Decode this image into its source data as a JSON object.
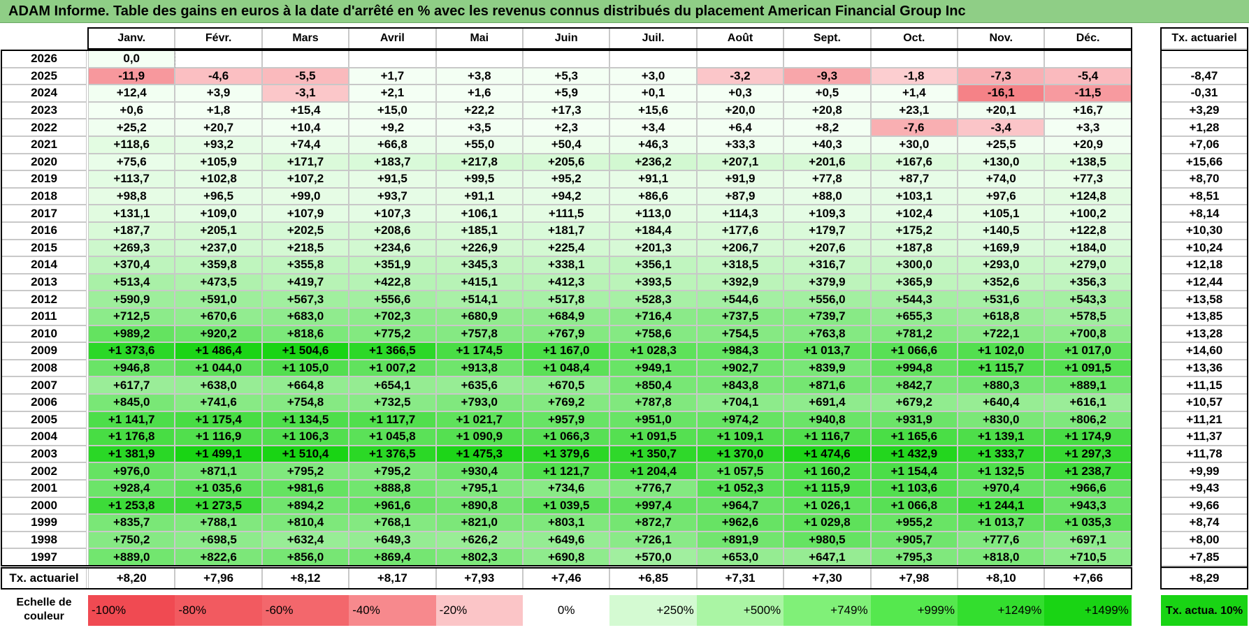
{
  "title": "ADAM Informe. Table des gains en euros à la date d'arrêté en % avec les revenus connus distribués du placement American Financial Group Inc",
  "chart_data": {
    "type": "table",
    "months": [
      "Janv.",
      "Févr.",
      "Mars",
      "Avril",
      "Mai",
      "Juin",
      "Juil.",
      "Août",
      "Sept.",
      "Oct.",
      "Nov.",
      "Déc."
    ],
    "rate_header": "Tx. actuariel",
    "rows": [
      {
        "year": "2026",
        "values": [
          "0,0",
          "",
          "",
          "",
          "",
          "",
          "",
          "",
          "",
          "",
          "",
          ""
        ],
        "rate": ""
      },
      {
        "year": "2025",
        "values": [
          "-11,9",
          "-4,6",
          "-5,5",
          "+1,7",
          "+3,8",
          "+5,3",
          "+3,0",
          "-3,2",
          "-9,3",
          "-1,8",
          "-7,3",
          "-5,4"
        ],
        "rate": "-8,47"
      },
      {
        "year": "2024",
        "values": [
          "+12,4",
          "+3,9",
          "-3,1",
          "+2,1",
          "+1,6",
          "+5,9",
          "+0,1",
          "+0,3",
          "+0,5",
          "+1,4",
          "-16,1",
          "-11,5"
        ],
        "rate": "-0,31"
      },
      {
        "year": "2023",
        "values": [
          "+0,6",
          "+1,8",
          "+15,4",
          "+15,0",
          "+22,2",
          "+17,3",
          "+15,6",
          "+20,0",
          "+20,8",
          "+23,1",
          "+20,1",
          "+16,7"
        ],
        "rate": "+3,29"
      },
      {
        "year": "2022",
        "values": [
          "+25,2",
          "+20,7",
          "+10,4",
          "+9,2",
          "+3,5",
          "+2,3",
          "+3,4",
          "+6,4",
          "+8,2",
          "-7,6",
          "-3,4",
          "+3,3"
        ],
        "rate": "+1,28"
      },
      {
        "year": "2021",
        "values": [
          "+118,6",
          "+93,2",
          "+74,4",
          "+66,8",
          "+55,0",
          "+50,4",
          "+46,3",
          "+33,3",
          "+40,3",
          "+30,0",
          "+25,5",
          "+20,9"
        ],
        "rate": "+7,06"
      },
      {
        "year": "2020",
        "values": [
          "+75,6",
          "+105,9",
          "+171,7",
          "+183,7",
          "+217,8",
          "+205,6",
          "+236,2",
          "+207,1",
          "+201,6",
          "+167,6",
          "+130,0",
          "+138,5"
        ],
        "rate": "+15,66"
      },
      {
        "year": "2019",
        "values": [
          "+113,7",
          "+102,8",
          "+107,2",
          "+91,5",
          "+99,5",
          "+95,2",
          "+91,1",
          "+91,9",
          "+77,8",
          "+87,7",
          "+74,0",
          "+77,3"
        ],
        "rate": "+8,70"
      },
      {
        "year": "2018",
        "values": [
          "+98,8",
          "+96,5",
          "+99,0",
          "+93,7",
          "+91,1",
          "+94,2",
          "+86,6",
          "+87,9",
          "+88,0",
          "+103,1",
          "+97,6",
          "+124,8"
        ],
        "rate": "+8,51"
      },
      {
        "year": "2017",
        "values": [
          "+131,1",
          "+109,0",
          "+107,9",
          "+107,3",
          "+106,1",
          "+111,5",
          "+113,0",
          "+114,3",
          "+109,3",
          "+102,4",
          "+105,1",
          "+100,2"
        ],
        "rate": "+8,14"
      },
      {
        "year": "2016",
        "values": [
          "+187,7",
          "+205,1",
          "+202,5",
          "+208,6",
          "+185,1",
          "+181,7",
          "+184,4",
          "+177,6",
          "+179,7",
          "+175,2",
          "+140,5",
          "+122,8"
        ],
        "rate": "+10,30"
      },
      {
        "year": "2015",
        "values": [
          "+269,3",
          "+237,0",
          "+218,5",
          "+234,6",
          "+226,9",
          "+225,4",
          "+201,3",
          "+206,7",
          "+207,6",
          "+187,8",
          "+169,9",
          "+184,0"
        ],
        "rate": "+10,24"
      },
      {
        "year": "2014",
        "values": [
          "+370,4",
          "+359,8",
          "+355,8",
          "+351,9",
          "+345,3",
          "+338,1",
          "+356,1",
          "+318,5",
          "+316,7",
          "+300,0",
          "+293,0",
          "+279,0"
        ],
        "rate": "+12,18"
      },
      {
        "year": "2013",
        "values": [
          "+513,4",
          "+473,5",
          "+419,7",
          "+422,8",
          "+415,1",
          "+412,3",
          "+393,5",
          "+392,9",
          "+379,9",
          "+365,9",
          "+352,6",
          "+356,3"
        ],
        "rate": "+12,44"
      },
      {
        "year": "2012",
        "values": [
          "+590,9",
          "+591,0",
          "+567,3",
          "+556,6",
          "+514,1",
          "+517,8",
          "+528,3",
          "+544,6",
          "+556,0",
          "+544,3",
          "+531,6",
          "+543,3"
        ],
        "rate": "+13,58"
      },
      {
        "year": "2011",
        "values": [
          "+712,5",
          "+670,6",
          "+683,0",
          "+702,3",
          "+680,9",
          "+684,9",
          "+716,4",
          "+737,5",
          "+739,7",
          "+655,3",
          "+618,8",
          "+578,5"
        ],
        "rate": "+13,85"
      },
      {
        "year": "2010",
        "values": [
          "+989,2",
          "+920,2",
          "+818,6",
          "+775,2",
          "+757,8",
          "+767,9",
          "+758,6",
          "+754,5",
          "+763,8",
          "+781,2",
          "+722,1",
          "+700,8"
        ],
        "rate": "+13,28"
      },
      {
        "year": "2009",
        "values": [
          "+1 373,6",
          "+1 486,4",
          "+1 504,6",
          "+1 366,5",
          "+1 174,5",
          "+1 167,0",
          "+1 028,3",
          "+984,3",
          "+1 013,7",
          "+1 066,6",
          "+1 102,0",
          "+1 017,0"
        ],
        "rate": "+14,60"
      },
      {
        "year": "2008",
        "values": [
          "+946,8",
          "+1 044,0",
          "+1 105,0",
          "+1 007,2",
          "+913,8",
          "+1 048,4",
          "+949,1",
          "+902,7",
          "+839,9",
          "+994,8",
          "+1 115,7",
          "+1 091,5"
        ],
        "rate": "+13,36"
      },
      {
        "year": "2007",
        "values": [
          "+617,7",
          "+638,0",
          "+664,8",
          "+654,1",
          "+635,6",
          "+670,5",
          "+850,4",
          "+843,8",
          "+871,6",
          "+842,7",
          "+880,3",
          "+889,1"
        ],
        "rate": "+11,15"
      },
      {
        "year": "2006",
        "values": [
          "+845,0",
          "+741,6",
          "+754,8",
          "+732,5",
          "+793,0",
          "+769,2",
          "+787,8",
          "+704,1",
          "+691,4",
          "+679,2",
          "+640,4",
          "+616,1"
        ],
        "rate": "+10,57"
      },
      {
        "year": "2005",
        "values": [
          "+1 141,7",
          "+1 175,4",
          "+1 134,5",
          "+1 117,7",
          "+1 021,7",
          "+957,9",
          "+951,0",
          "+974,2",
          "+940,8",
          "+931,9",
          "+830,0",
          "+806,2"
        ],
        "rate": "+11,21"
      },
      {
        "year": "2004",
        "values": [
          "+1 176,8",
          "+1 116,9",
          "+1 106,3",
          "+1 045,8",
          "+1 090,9",
          "+1 066,3",
          "+1 091,5",
          "+1 109,1",
          "+1 116,7",
          "+1 165,6",
          "+1 139,1",
          "+1 174,9"
        ],
        "rate": "+11,37"
      },
      {
        "year": "2003",
        "values": [
          "+1 381,9",
          "+1 499,1",
          "+1 510,4",
          "+1 376,5",
          "+1 475,3",
          "+1 379,6",
          "+1 350,7",
          "+1 370,0",
          "+1 474,6",
          "+1 432,9",
          "+1 333,7",
          "+1 297,3"
        ],
        "rate": "+11,78"
      },
      {
        "year": "2002",
        "values": [
          "+976,0",
          "+871,1",
          "+795,2",
          "+795,2",
          "+930,4",
          "+1 121,7",
          "+1 204,4",
          "+1 057,5",
          "+1 160,2",
          "+1 154,4",
          "+1 132,5",
          "+1 238,7"
        ],
        "rate": "+9,99"
      },
      {
        "year": "2001",
        "values": [
          "+928,4",
          "+1 035,6",
          "+981,6",
          "+888,8",
          "+795,1",
          "+734,6",
          "+776,7",
          "+1 052,3",
          "+1 115,9",
          "+1 103,6",
          "+970,4",
          "+966,6"
        ],
        "rate": "+9,43"
      },
      {
        "year": "2000",
        "values": [
          "+1 253,8",
          "+1 273,5",
          "+894,2",
          "+961,6",
          "+890,8",
          "+1 039,5",
          "+997,4",
          "+964,7",
          "+1 026,1",
          "+1 066,8",
          "+1 244,1",
          "+943,3"
        ],
        "rate": "+9,66"
      },
      {
        "year": "1999",
        "values": [
          "+835,7",
          "+788,1",
          "+810,4",
          "+768,1",
          "+821,0",
          "+803,1",
          "+872,7",
          "+962,6",
          "+1 029,8",
          "+955,2",
          "+1 013,7",
          "+1 035,3"
        ],
        "rate": "+8,74"
      },
      {
        "year": "1998",
        "values": [
          "+750,2",
          "+698,5",
          "+632,4",
          "+649,3",
          "+626,2",
          "+649,6",
          "+726,1",
          "+891,9",
          "+980,5",
          "+905,7",
          "+777,6",
          "+697,1"
        ],
        "rate": "+8,00"
      },
      {
        "year": "1997",
        "values": [
          "+889,0",
          "+822,6",
          "+856,0",
          "+869,4",
          "+802,3",
          "+690,8",
          "+570,0",
          "+653,0",
          "+647,1",
          "+795,3",
          "+818,0",
          "+710,5"
        ],
        "rate": "+7,85"
      }
    ],
    "footer": {
      "label": "Tx. actuariel",
      "values": [
        "+8,20",
        "+7,96",
        "+8,12",
        "+8,17",
        "+7,93",
        "+7,46",
        "+6,85",
        "+7,31",
        "+7,30",
        "+7,98",
        "+8,10",
        "+7,66"
      ],
      "rate": "+8,29"
    },
    "legend": {
      "title": "Echelle de couleur",
      "items": [
        {
          "label": "-100%",
          "color": "#f04a52"
        },
        {
          "label": "-80%",
          "color": "#f25a60"
        },
        {
          "label": "-60%",
          "color": "#f3676c"
        },
        {
          "label": "-40%",
          "color": "#f7898d"
        },
        {
          "label": "-20%",
          "color": "#fbc5c7"
        },
        {
          "label": "0%",
          "color": "#ffffff"
        },
        {
          "label": "+250%",
          "color": "#d4fad2"
        },
        {
          "label": "+500%",
          "color": "#aaf5a4"
        },
        {
          "label": "+749%",
          "color": "#80f078"
        },
        {
          "label": "+999%",
          "color": "#55e84e"
        },
        {
          "label": "+1249%",
          "color": "#33de2e"
        },
        {
          "label": "+1499%",
          "color": "#19d414"
        }
      ],
      "rate_label": "Tx. actua. 10%",
      "rate_color": "#19d414"
    }
  }
}
